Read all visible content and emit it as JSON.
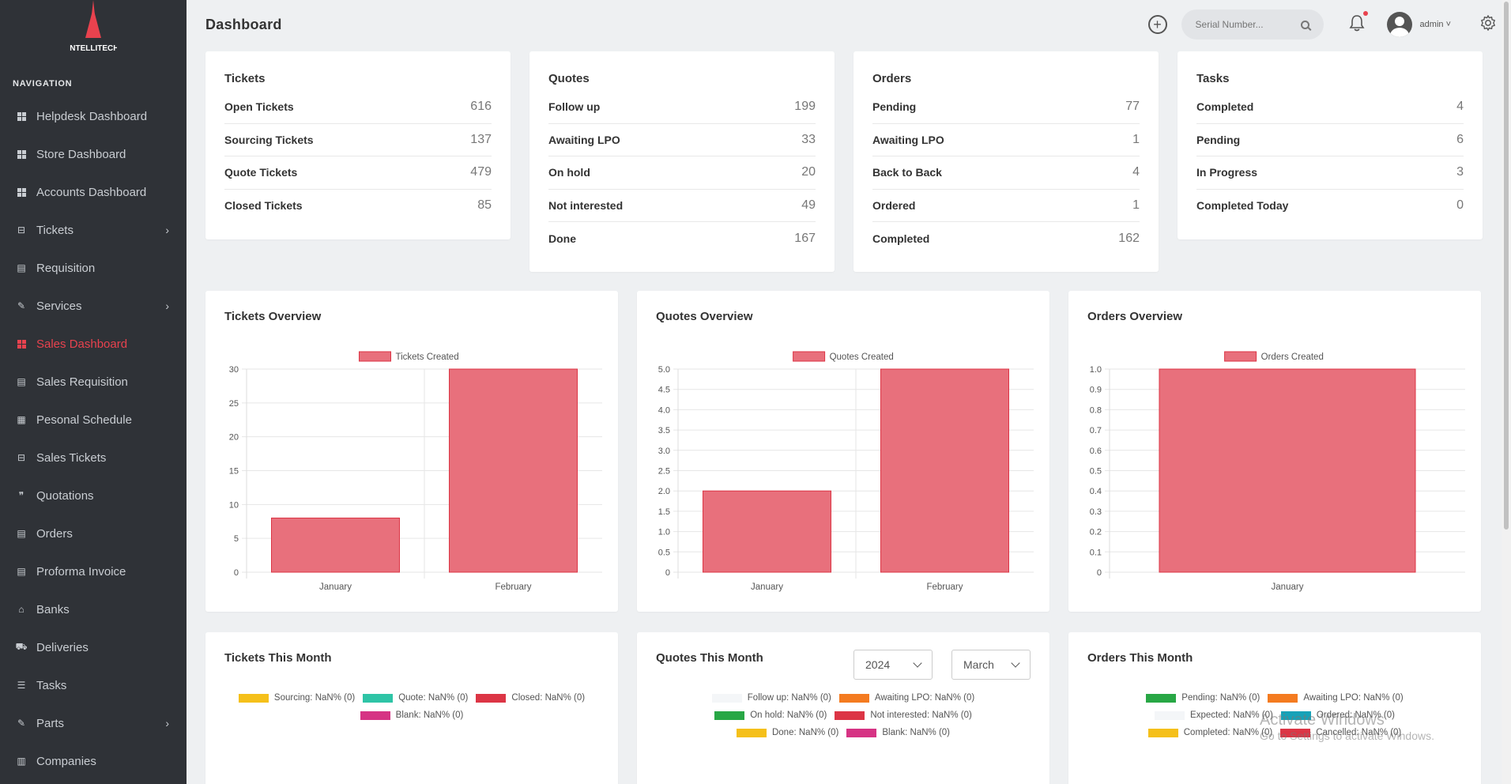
{
  "brand": {
    "logo_text": "INTELLITECH"
  },
  "sidebar": {
    "heading": "NAVIGATION",
    "items": [
      {
        "label": "Helpdesk Dashboard",
        "icon": "dashboard-icon"
      },
      {
        "label": "Store Dashboard",
        "icon": "dashboard-icon"
      },
      {
        "label": "Accounts Dashboard",
        "icon": "dashboard-icon"
      },
      {
        "label": "Tickets",
        "icon": "ticket-icon",
        "submenu": true
      },
      {
        "label": "Requisition",
        "icon": "list-icon"
      },
      {
        "label": "Services",
        "icon": "wrench-icon",
        "submenu": true
      },
      {
        "label": "Sales Dashboard",
        "icon": "dashboard-icon",
        "active": true
      },
      {
        "label": "Sales Requisition",
        "icon": "list-icon"
      },
      {
        "label": "Pesonal Schedule",
        "icon": "calendar-icon"
      },
      {
        "label": "Sales Tickets",
        "icon": "ticket-icon"
      },
      {
        "label": "Quotations",
        "icon": "quote-icon"
      },
      {
        "label": "Orders",
        "icon": "document-icon"
      },
      {
        "label": "Proforma Invoice",
        "icon": "document-icon"
      },
      {
        "label": "Banks",
        "icon": "bank-icon"
      },
      {
        "label": "Deliveries",
        "icon": "truck-icon"
      },
      {
        "label": "Tasks",
        "icon": "tasks-icon"
      },
      {
        "label": "Parts",
        "icon": "wrench-icon",
        "submenu": true
      },
      {
        "label": "Companies",
        "icon": "building-icon"
      }
    ]
  },
  "header": {
    "title": "Dashboard",
    "search_placeholder": "Serial Number...",
    "username": "admin ˅"
  },
  "stats": {
    "tickets": {
      "title": "Tickets",
      "rows": [
        {
          "label": "Open Tickets",
          "value": "616"
        },
        {
          "label": "Sourcing Tickets",
          "value": "137"
        },
        {
          "label": "Quote Tickets",
          "value": "479"
        },
        {
          "label": "Closed Tickets",
          "value": "85"
        }
      ]
    },
    "quotes": {
      "title": "Quotes",
      "rows": [
        {
          "label": "Follow up",
          "value": "199"
        },
        {
          "label": "Awaiting LPO",
          "value": "33"
        },
        {
          "label": "On hold",
          "value": "20"
        },
        {
          "label": "Not interested",
          "value": "49"
        },
        {
          "label": "Done",
          "value": "167"
        }
      ]
    },
    "orders": {
      "title": "Orders",
      "rows": [
        {
          "label": "Pending",
          "value": "77"
        },
        {
          "label": "Awaiting LPO",
          "value": "1"
        },
        {
          "label": "Back to Back",
          "value": "4"
        },
        {
          "label": "Ordered",
          "value": "1"
        },
        {
          "label": "Completed",
          "value": "162"
        }
      ]
    },
    "tasks": {
      "title": "Tasks",
      "rows": [
        {
          "label": "Completed",
          "value": "4"
        },
        {
          "label": "Pending",
          "value": "6"
        },
        {
          "label": "In Progress",
          "value": "3"
        },
        {
          "label": "Completed Today",
          "value": "0"
        }
      ]
    }
  },
  "chart_data": [
    {
      "type": "bar",
      "title": "Tickets Overview",
      "categories": [
        "January",
        "February"
      ],
      "series": [
        {
          "name": "Tickets Created",
          "values": [
            8,
            30
          ]
        }
      ],
      "ylim": [
        0,
        30
      ],
      "yticks": [
        "0",
        "5",
        "10",
        "15",
        "20",
        "25",
        "30"
      ],
      "grid": true,
      "legend": "top",
      "color": "#e8707c"
    },
    {
      "type": "bar",
      "title": "Quotes Overview",
      "categories": [
        "January",
        "February"
      ],
      "series": [
        {
          "name": "Quotes Created",
          "values": [
            2,
            5
          ]
        }
      ],
      "ylim": [
        0,
        5
      ],
      "yticks": [
        "0",
        "0.5",
        "1.0",
        "1.5",
        "2.0",
        "2.5",
        "3.0",
        "3.5",
        "4.0",
        "4.5",
        "5.0"
      ],
      "grid": true,
      "legend": "top",
      "color": "#e8707c"
    },
    {
      "type": "bar",
      "title": "Orders Overview",
      "categories": [
        "January"
      ],
      "series": [
        {
          "name": "Orders Created",
          "values": [
            1
          ]
        }
      ],
      "ylim": [
        0,
        1
      ],
      "yticks": [
        "0",
        "0.1",
        "0.2",
        "0.3",
        "0.4",
        "0.5",
        "0.6",
        "0.7",
        "0.8",
        "0.9",
        "1.0"
      ],
      "grid": true,
      "legend": "top",
      "color": "#e8707c"
    }
  ],
  "month": {
    "tickets": {
      "title": "Tickets This Month",
      "legend_rows": [
        [
          {
            "label": "Sourcing: NaN% (0)",
            "color": "#f5c01a"
          },
          {
            "label": "Quote: NaN% (0)",
            "color": "#2ec4a6"
          },
          {
            "label": "Closed: NaN% (0)",
            "color": "#dc3545"
          }
        ],
        [
          {
            "label": "Blank: NaN% (0)",
            "color": "#d63384"
          }
        ]
      ]
    },
    "quotes": {
      "title": "Quotes This Month",
      "year": "2024",
      "month": "March",
      "legend_rows": [
        [
          {
            "label": "Follow up: NaN% (0)",
            "color": "#f4f6f8"
          },
          {
            "label": "Awaiting LPO: NaN% (0)",
            "color": "#f47b20"
          }
        ],
        [
          {
            "label": "On hold: NaN% (0)",
            "color": "#28a745"
          },
          {
            "label": "Not interested: NaN% (0)",
            "color": "#dc3545"
          }
        ],
        [
          {
            "label": "Done: NaN% (0)",
            "color": "#f5c01a"
          },
          {
            "label": "Blank: NaN% (0)",
            "color": "#d63384"
          }
        ]
      ]
    },
    "orders": {
      "title": "Orders This Month",
      "legend_rows": [
        [
          {
            "label": "Pending: NaN% (0)",
            "color": "#28a745"
          },
          {
            "label": "Awaiting LPO: NaN% (0)",
            "color": "#f47b20"
          }
        ],
        [
          {
            "label": "Expected: NaN% (0)",
            "color": "#f4f6f8"
          },
          {
            "label": "Ordered: NaN% (0)",
            "color": "#17a2b8"
          }
        ],
        [
          {
            "label": "Completed: NaN% (0)",
            "color": "#f5c01a"
          },
          {
            "label": "Cancelled: NaN% (0)",
            "color": "#dc3545"
          }
        ]
      ]
    }
  },
  "watermark": {
    "line1": "Activate Windows",
    "line2": "Go to Settings to activate Windows."
  },
  "colors": {
    "sidebar_bg": "#2f3237",
    "accent": "#e8424e",
    "bar": "#e8707c"
  }
}
